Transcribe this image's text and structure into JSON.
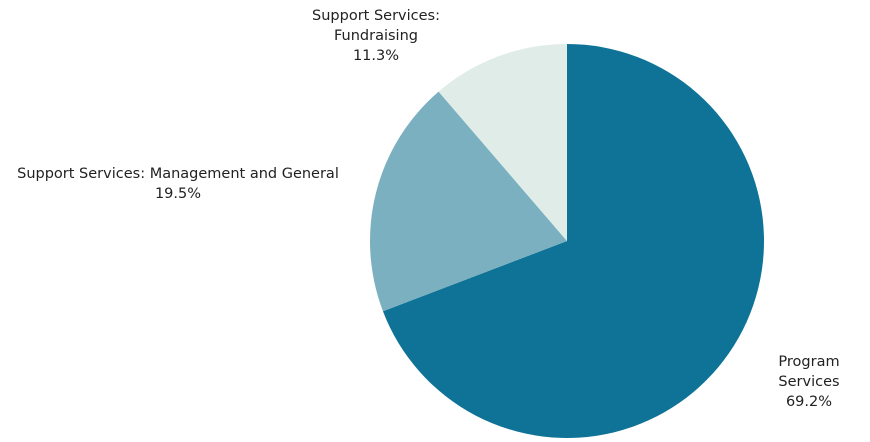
{
  "chart_data": {
    "type": "pie",
    "title": "",
    "slices": [
      {
        "label": "Program Services",
        "value": 69.2,
        "value_label": "69.2%",
        "color": "#0e7397"
      },
      {
        "label": "Support Services: Management and General",
        "value": 19.5,
        "value_label": "19.5%",
        "color": "#7bb0c0"
      },
      {
        "label": "Support Services: Fundraising",
        "value": 11.3,
        "value_label": "11.3%",
        "color": "#e0ece8"
      }
    ],
    "start_angle_deg": 0,
    "direction": "clockwise",
    "legend": "none"
  }
}
